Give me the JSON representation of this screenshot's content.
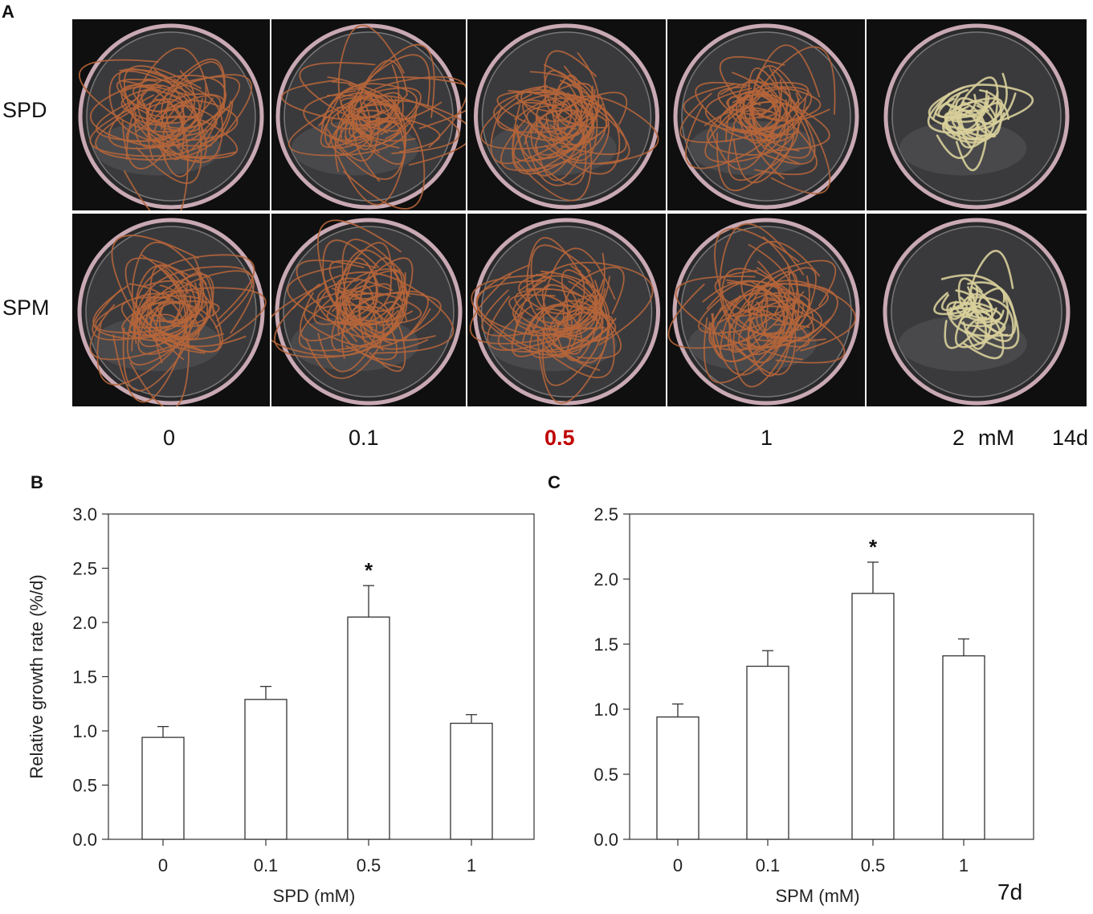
{
  "panel_a": {
    "letter": "A",
    "rows": [
      "SPD",
      "SPM"
    ],
    "concentrations": [
      "0",
      "0.1",
      "0.5",
      "1",
      "2"
    ],
    "unit_label": "mM",
    "time_label": "14d",
    "highlight_color": "#c00000",
    "healthy_root_color": "#b5653a",
    "dead_root_color": "#d8cf9a"
  },
  "panel_b": {
    "letter": "B"
  },
  "panel_c": {
    "letter": "C"
  },
  "footer_time": "7d",
  "chart_data": [
    {
      "type": "bar",
      "categories": [
        "0",
        "0.1",
        "0.5",
        "1"
      ],
      "values": [
        0.94,
        1.29,
        2.05,
        1.07
      ],
      "errors": [
        0.1,
        0.12,
        0.29,
        0.08
      ],
      "significant": [
        "",
        "",
        "*",
        ""
      ],
      "xlabel": "SPD (mM)",
      "ylabel": "Relative growth rate (%/d)",
      "ylim": [
        0,
        3.0
      ],
      "yticks": [
        "0.0",
        "0.5",
        "1.0",
        "1.5",
        "2.0",
        "2.5",
        "3.0"
      ],
      "grid": false
    },
    {
      "type": "bar",
      "categories": [
        "0",
        "0.1",
        "0.5",
        "1"
      ],
      "values": [
        0.94,
        1.33,
        1.89,
        1.41
      ],
      "errors": [
        0.1,
        0.12,
        0.24,
        0.13
      ],
      "significant": [
        "",
        "",
        "*",
        ""
      ],
      "xlabel": "SPM (mM)",
      "ylabel": "",
      "ylim": [
        0,
        2.5
      ],
      "yticks": [
        "0.0",
        "0.5",
        "1.0",
        "1.5",
        "2.0",
        "2.5"
      ],
      "grid": false
    }
  ]
}
